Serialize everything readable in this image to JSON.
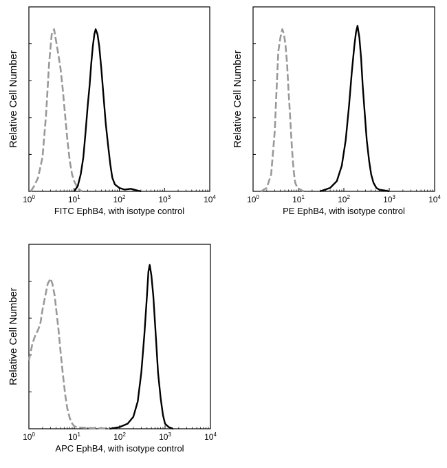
{
  "chart_data": [
    {
      "type": "line",
      "panel": "FITC",
      "xlabel": "FITC  EphB4,  with isotype control",
      "ylabel": "Relative Cell Number",
      "x_scale": "log",
      "xlim": [
        1,
        10000
      ],
      "ylim": [
        0,
        1
      ],
      "x_ticks": [
        1,
        10,
        100,
        1000,
        10000
      ],
      "x_tick_labels": [
        [
          "10",
          "0"
        ],
        [
          "10",
          "1"
        ],
        [
          "10",
          "2"
        ],
        [
          "10",
          "3"
        ],
        [
          "10",
          "4"
        ]
      ],
      "grid": false,
      "legend": "none",
      "series": [
        {
          "role": "isotype_control",
          "color": "#999999",
          "dashed": true,
          "points": [
            [
              1.1,
              0.0
            ],
            [
              1.3,
              0.03
            ],
            [
              1.6,
              0.08
            ],
            [
              2.0,
              0.2
            ],
            [
              2.4,
              0.45
            ],
            [
              2.8,
              0.75
            ],
            [
              3.2,
              0.92
            ],
            [
              3.6,
              0.95
            ],
            [
              4.0,
              0.88
            ],
            [
              4.5,
              0.8
            ],
            [
              5.0,
              0.72
            ],
            [
              5.6,
              0.6
            ],
            [
              6.3,
              0.45
            ],
            [
              7.1,
              0.3
            ],
            [
              8.0,
              0.18
            ],
            [
              9.0,
              0.1
            ],
            [
              10.0,
              0.06
            ],
            [
              11.5,
              0.03
            ],
            [
              13.0,
              0.01
            ],
            [
              15.0,
              0.0
            ]
          ]
        },
        {
          "role": "EphB4",
          "color": "#000000",
          "dashed": false,
          "points": [
            [
              10.0,
              0.0
            ],
            [
              12.0,
              0.03
            ],
            [
              14.0,
              0.1
            ],
            [
              16.0,
              0.2
            ],
            [
              18.0,
              0.35
            ],
            [
              20.0,
              0.5
            ],
            [
              22.0,
              0.62
            ],
            [
              24.0,
              0.75
            ],
            [
              26.0,
              0.85
            ],
            [
              28.0,
              0.92
            ],
            [
              30.0,
              0.95
            ],
            [
              33.0,
              0.92
            ],
            [
              36.0,
              0.85
            ],
            [
              40.0,
              0.72
            ],
            [
              45.0,
              0.55
            ],
            [
              50.0,
              0.4
            ],
            [
              56.0,
              0.28
            ],
            [
              63.0,
              0.16
            ],
            [
              70.0,
              0.08
            ],
            [
              80.0,
              0.04
            ],
            [
              100.0,
              0.02
            ],
            [
              130.0,
              0.01
            ],
            [
              180.0,
              0.015
            ],
            [
              250.0,
              0.005
            ],
            [
              300.0,
              0.0
            ]
          ]
        }
      ]
    },
    {
      "type": "line",
      "panel": "PE",
      "xlabel": "PE  EphB4,  with isotype control",
      "ylabel": "Relative Cell Number",
      "x_scale": "log",
      "xlim": [
        1,
        10000
      ],
      "ylim": [
        0,
        1
      ],
      "x_ticks": [
        1,
        10,
        100,
        1000,
        10000
      ],
      "x_tick_labels": [
        [
          "10",
          "0"
        ],
        [
          "10",
          "1"
        ],
        [
          "10",
          "2"
        ],
        [
          "10",
          "3"
        ],
        [
          "10",
          "4"
        ]
      ],
      "grid": false,
      "legend": "none",
      "series": [
        {
          "role": "isotype_control",
          "color": "#999999",
          "dashed": true,
          "points": [
            [
              1.5,
              0.0
            ],
            [
              2.0,
              0.02
            ],
            [
              2.5,
              0.1
            ],
            [
              3.0,
              0.35
            ],
            [
              3.3,
              0.6
            ],
            [
              3.6,
              0.82
            ],
            [
              4.0,
              0.9
            ],
            [
              4.4,
              0.95
            ],
            [
              4.8,
              0.92
            ],
            [
              5.2,
              0.85
            ],
            [
              5.6,
              0.75
            ],
            [
              6.0,
              0.6
            ],
            [
              6.5,
              0.45
            ],
            [
              7.0,
              0.3
            ],
            [
              7.5,
              0.18
            ],
            [
              8.0,
              0.1
            ],
            [
              8.5,
              0.05
            ],
            [
              9.5,
              0.02
            ],
            [
              11.0,
              0.01
            ],
            [
              13.0,
              0.0
            ]
          ]
        },
        {
          "role": "EphB4",
          "color": "#000000",
          "dashed": false,
          "points": [
            [
              30.0,
              0.0
            ],
            [
              50.0,
              0.02
            ],
            [
              70.0,
              0.06
            ],
            [
              90.0,
              0.15
            ],
            [
              110.0,
              0.3
            ],
            [
              130.0,
              0.5
            ],
            [
              150.0,
              0.7
            ],
            [
              170.0,
              0.85
            ],
            [
              185.0,
              0.93
            ],
            [
              200.0,
              0.97
            ],
            [
              220.0,
              0.9
            ],
            [
              240.0,
              0.78
            ],
            [
              260.0,
              0.62
            ],
            [
              290.0,
              0.45
            ],
            [
              320.0,
              0.3
            ],
            [
              360.0,
              0.18
            ],
            [
              400.0,
              0.1
            ],
            [
              450.0,
              0.05
            ],
            [
              520.0,
              0.02
            ],
            [
              600.0,
              0.01
            ],
            [
              800.0,
              0.005
            ],
            [
              1000.0,
              0.0
            ]
          ]
        }
      ]
    },
    {
      "type": "line",
      "panel": "APC",
      "xlabel": "APC EphB4, with isotype control",
      "ylabel": "Relative Cell Number",
      "x_scale": "log",
      "xlim": [
        1,
        10000
      ],
      "ylim": [
        0,
        1
      ],
      "x_ticks": [
        1,
        10,
        100,
        1000,
        10000
      ],
      "x_tick_labels": [
        [
          "10",
          "0"
        ],
        [
          "10",
          "1"
        ],
        [
          "10",
          "2"
        ],
        [
          "10",
          "3"
        ],
        [
          "10",
          "4"
        ]
      ],
      "grid": false,
      "legend": "none",
      "series": [
        {
          "role": "isotype_control",
          "color": "#999999",
          "dashed": true,
          "points": [
            [
              1.0,
              0.4
            ],
            [
              1.2,
              0.5
            ],
            [
              1.4,
              0.55
            ],
            [
              1.6,
              0.58
            ],
            [
              1.8,
              0.62
            ],
            [
              2.0,
              0.7
            ],
            [
              2.3,
              0.78
            ],
            [
              2.6,
              0.85
            ],
            [
              3.0,
              0.88
            ],
            [
              3.3,
              0.85
            ],
            [
              3.7,
              0.78
            ],
            [
              4.0,
              0.7
            ],
            [
              4.5,
              0.58
            ],
            [
              5.0,
              0.45
            ],
            [
              5.6,
              0.32
            ],
            [
              6.3,
              0.2
            ],
            [
              7.0,
              0.12
            ],
            [
              8.0,
              0.06
            ],
            [
              9.0,
              0.03
            ],
            [
              10.0,
              0.015
            ],
            [
              12.0,
              0.008
            ],
            [
              20.0,
              0.005
            ],
            [
              40.0,
              0.003
            ],
            [
              60.0,
              0.0
            ]
          ]
        },
        {
          "role": "EphB4",
          "color": "#000000",
          "dashed": false,
          "points": [
            [
              60.0,
              0.0
            ],
            [
              100.0,
              0.01
            ],
            [
              150.0,
              0.03
            ],
            [
              200.0,
              0.07
            ],
            [
              250.0,
              0.16
            ],
            [
              300.0,
              0.33
            ],
            [
              350.0,
              0.55
            ],
            [
              400.0,
              0.78
            ],
            [
              430.0,
              0.92
            ],
            [
              460.0,
              0.96
            ],
            [
              500.0,
              0.9
            ],
            [
              550.0,
              0.78
            ],
            [
              600.0,
              0.62
            ],
            [
              650.0,
              0.47
            ],
            [
              700.0,
              0.33
            ],
            [
              800.0,
              0.18
            ],
            [
              900.0,
              0.08
            ],
            [
              1000.0,
              0.03
            ],
            [
              1200.0,
              0.01
            ],
            [
              1500.0,
              0.0
            ]
          ]
        }
      ]
    }
  ]
}
